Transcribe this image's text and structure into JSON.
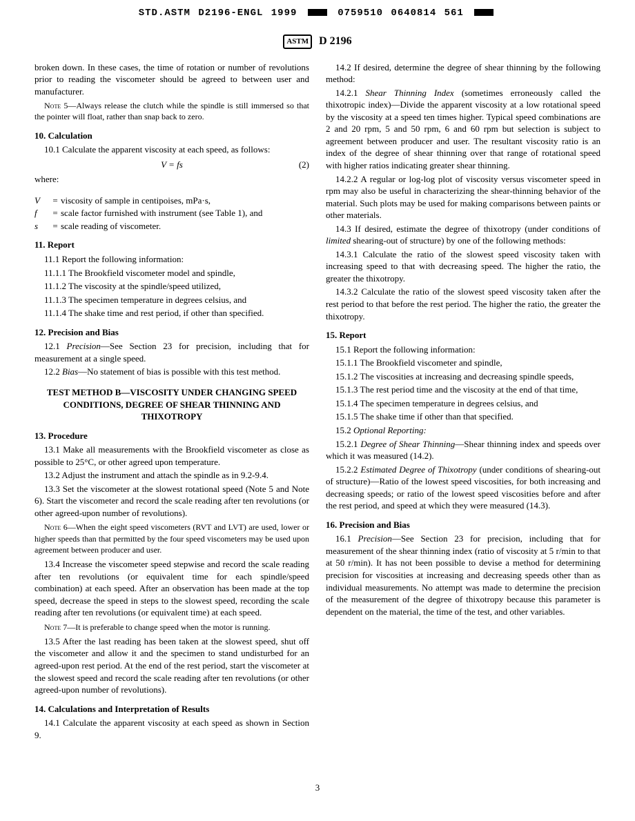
{
  "header": {
    "std_code": "STD.ASTM D2196-ENGL 1999",
    "num_code": "0759510 0640814 561",
    "doc_number": "D 2196",
    "logo_text": "ASTM"
  },
  "cont_para": "broken down. In these cases, the time of rotation or number of revolutions prior to reading the viscometer should be agreed to between user and manufacturer.",
  "note5_label": "Note",
  "note5_num": " 5—",
  "note5": "Always release the clutch while the spindle is still immersed so that the pointer will float, rather than snap back to zero.",
  "s10_head": "10. Calculation",
  "s10_1": "10.1 Calculate the apparent viscosity at each speed, as follows:",
  "eq2": "V = fs",
  "eq2_num": "(2)",
  "where": "where:",
  "var_V_sym": "V",
  "var_V_def": "viscosity of sample in centipoises, mPa·s,",
  "var_f_sym": "f",
  "var_f_def": "scale factor furnished with instrument (see Table 1), and",
  "var_s_sym": "s",
  "var_s_def": "scale reading of viscometer.",
  "s11_head": "11. Report",
  "s11_1": "11.1 Report the following information:",
  "s11_1_1": "11.1.1 The Brookfield viscometer model and spindle,",
  "s11_1_2": "11.1.2 The viscosity at the spindle/speed utilized,",
  "s11_1_3": "11.1.3 The specimen temperature in degrees celsius, and",
  "s11_1_4": "11.1.4 The shake time and rest period, if other than specified.",
  "s12_head": "12. Precision and Bias",
  "s12_1_lead": "12.1 ",
  "s12_1_it": "Precision",
  "s12_1": "—See Section 23 for precision, including that for measurement at a single speed.",
  "s12_2_lead": "12.2 ",
  "s12_2_it": "Bias",
  "s12_2": "—No statement of bias is possible with this test method.",
  "method_b_head": "TEST METHOD B—VISCOSITY UNDER CHANGING SPEED CONDITIONS, DEGREE OF SHEAR THINNING AND THIXOTROPY",
  "s13_head": "13. Procedure",
  "s13_1": "13.1 Make all measurements with the Brookfield viscometer as close as possible to 25°C, or other agreed upon temperature.",
  "s13_2": "13.2 Adjust the instrument and attach the spindle as in 9.2-9.4.",
  "s13_3": "13.3 Set the viscometer at the slowest rotational speed (Note 5 and Note 6). Start the viscometer and record the scale reading after ten revolutions (or other agreed-upon number of revolutions).",
  "note6_label": "Note",
  "note6_num": " 6—",
  "note6": "When the eight speed viscometers (RVT and LVT) are used, lower or higher speeds than that permitted by the four speed viscometers may be used upon agreement between producer and user.",
  "s13_4": "13.4 Increase the viscometer speed stepwise and record the scale reading after ten revolutions (or equivalent time for each spindle/speed combination) at each speed. After an observation has been made at the top speed, decrease the speed in steps to the slowest speed, recording the scale reading after ten revolutions (or equivalent time) at each speed.",
  "note7_label": "Note",
  "note7_num": " 7—",
  "note7": "It is preferable to change speed when the motor is running.",
  "s13_5": "13.5 After the last reading has been taken at the slowest speed, shut off the viscometer and allow it and the specimen to stand undisturbed for an agreed-upon rest period. At the end of the rest period, start the viscometer at the slowest speed and record the scale reading after ten revolutions (or other agreed-upon number of revolutions).",
  "s14_head": "14. Calculations and Interpretation of Results",
  "s14_1": "14.1 Calculate the apparent viscosity at each speed as shown in Section 9.",
  "s14_2": "14.2 If desired, determine the degree of shear thinning by the following method:",
  "s14_2_1_lead": "14.2.1 ",
  "s14_2_1_it": "Shear Thinning Index",
  "s14_2_1": " (sometimes erroneously called the thixotropic index)—Divide the apparent viscosity at a low rotational speed by the viscosity at a speed ten times higher. Typical speed combinations are 2 and 20 rpm, 5 and 50 rpm, 6 and 60 rpm but selection is subject to agreement between producer and user. The resultant viscosity ratio is an index of the degree of shear thinning over that range of rotational speed with higher ratios indicating greater shear thinning.",
  "s14_2_2": "14.2.2 A regular or log-log plot of viscosity versus viscometer speed in rpm may also be useful in characterizing the shear-thinning behavior of the material. Such plots may be used for making comparisons between paints or other materials.",
  "s14_3a": "14.3 If desired, estimate the degree of thixotropy (under conditions of ",
  "s14_3_it": "limited",
  "s14_3b": " shearing-out of structure) by one of the following methods:",
  "s14_3_1": "14.3.1 Calculate the ratio of the slowest speed viscosity taken with increasing speed to that with decreasing speed. The higher the ratio, the greater the thixotropy.",
  "s14_3_2": "14.3.2 Calculate the ratio of the slowest speed viscosity taken after the rest period to that before the rest period. The higher the ratio, the greater the thixotropy.",
  "s15_head": "15. Report",
  "s15_1": "15.1 Report the following information:",
  "s15_1_1": "15.1.1 The Brookfield viscometer and spindle,",
  "s15_1_2": "15.1.2 The viscosities at increasing and decreasing spindle speeds,",
  "s15_1_3": "15.1.3 The rest period time and the viscosity at the end of that time,",
  "s15_1_4": "15.1.4 The specimen temperature in degrees celsius, and",
  "s15_1_5": "15.1.5 The shake time if other than that specified.",
  "s15_2_lead": "15.2 ",
  "s15_2_it": "Optional Reporting:",
  "s15_2_1_lead": "15.2.1 ",
  "s15_2_1_it": "Degree of Shear Thinning",
  "s15_2_1": "—Shear thinning index and speeds over which it was measured (14.2).",
  "s15_2_2_lead": "15.2.2 ",
  "s15_2_2_it": "Estimated Degree of Thixotropy",
  "s15_2_2": " (under conditions of shearing-out of structure)—Ratio of the lowest speed viscosities, for both increasing and decreasing speeds; or ratio of the lowest speed viscosities before and after the rest period, and speed at which they were measured (14.3).",
  "s16_head": "16. Precision and Bias",
  "s16_1_lead": "16.1 ",
  "s16_1_it": "Precision",
  "s16_1": "—See Section 23 for precision, including that for measurement of the shear thinning index (ratio of viscosity at 5 r/min to that at 50 r/min). It has not been possible to devise a method for determining precision for viscosities at increasing and decreasing speeds other than as individual measurements. No attempt was made to determine the precision of the measurement of the degree of thixotropy because this parameter is dependent on the material, the time of the test, and other variables.",
  "page_num": "3"
}
